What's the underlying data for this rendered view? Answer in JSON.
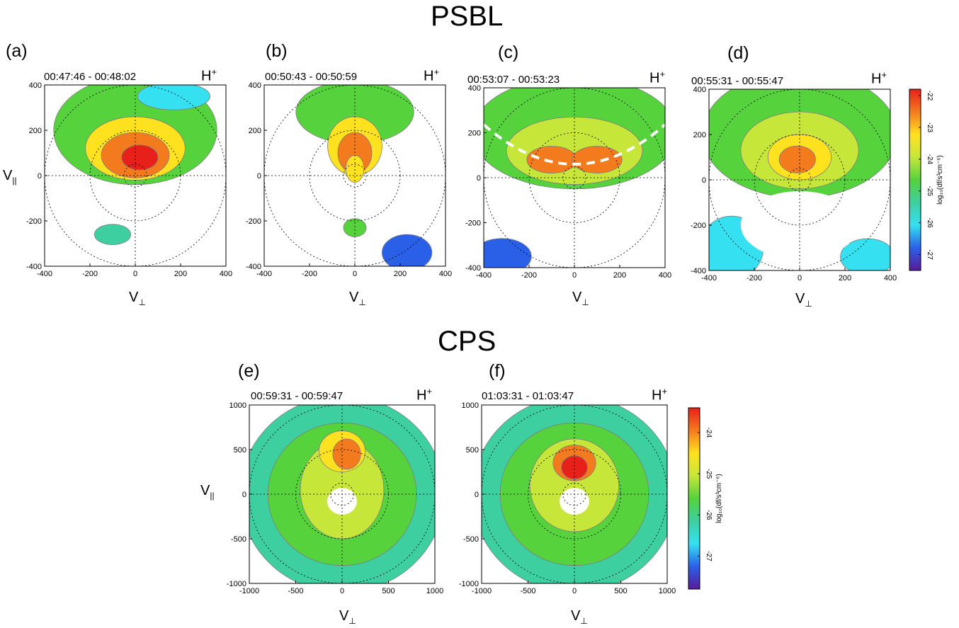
{
  "titles": {
    "psbl": "PSBL",
    "cps": "CPS"
  },
  "colors": {
    "red": "#e8201a",
    "orange": "#f47a1e",
    "yellow": "#ffe21f",
    "yellowgreen": "#c7e63a",
    "green": "#55d23c",
    "teal": "#3ecfa0",
    "cyan": "#35e0f0",
    "blue": "#2a60e8",
    "purple": "#5a1a9a"
  },
  "panels": [
    {
      "letter": "(a)",
      "time": "00:47:46 - 00:48:02",
      "species_base": "H",
      "species_sup": "+",
      "ylabel_base": "V",
      "ylabel_sub": "||",
      "xlabel_base": "V",
      "xlabel_sub": "⊥",
      "xticks": [
        "-400",
        "-200",
        "0",
        "200",
        "400"
      ],
      "yticks": [
        "400",
        "200",
        "0",
        "-200",
        "-400"
      ]
    },
    {
      "letter": "(b)",
      "time": "00:50:43 - 00:50:59",
      "species_base": "H",
      "species_sup": "+",
      "xlabel_base": "V",
      "xlabel_sub": "⊥",
      "xticks": [
        "-400",
        "-200",
        "0",
        "200",
        "400"
      ],
      "yticks": [
        "400",
        "200",
        "0",
        "-200",
        "-400"
      ]
    },
    {
      "letter": "(c)",
      "time": "00:53:07 - 00:53:23",
      "species_base": "H",
      "species_sup": "+",
      "xlabel_base": "V",
      "xlabel_sub": "⊥",
      "xticks": [
        "-400",
        "-200",
        "0",
        "200",
        "400"
      ],
      "yticks": [
        "400",
        "200",
        "0",
        "-200",
        "-400"
      ]
    },
    {
      "letter": "(d)",
      "time": "00:55:31 - 00:55:47",
      "species_base": "H",
      "species_sup": "+",
      "xlabel_base": "V",
      "xlabel_sub": "⊥",
      "xticks": [
        "-400",
        "-200",
        "0",
        "200",
        "400"
      ],
      "yticks": [
        "400",
        "200",
        "0",
        "-200",
        "-400"
      ]
    },
    {
      "letter": "(e)",
      "time": "00:59:31 - 00:59:47",
      "species_base": "H",
      "species_sup": "+",
      "ylabel_base": "V",
      "ylabel_sub": "||",
      "xlabel_base": "V",
      "xlabel_sub": "⊥",
      "xticks": [
        "-1000",
        "-500",
        "0",
        "500",
        "1000"
      ],
      "yticks": [
        "1000",
        "500",
        "0",
        "-500",
        "-1000"
      ]
    },
    {
      "letter": "(f)",
      "time": "01:03:31 - 01:03:47",
      "species_base": "H",
      "species_sup": "+",
      "xlabel_base": "V",
      "xlabel_sub": "⊥",
      "xticks": [
        "-1000",
        "-500",
        "0",
        "500",
        "1000"
      ],
      "yticks": [
        "1000",
        "500",
        "0",
        "-500",
        "-1000"
      ]
    }
  ],
  "colorbars": [
    {
      "label": "log₁₀(df/s³cm⁻⁶)",
      "ticks": [
        "-22",
        "-23",
        "-24",
        "-25",
        "-26",
        "-27"
      ],
      "range": [
        -27.5,
        -21.8
      ]
    },
    {
      "label": "log₁₀(df/s³cm⁻⁶)",
      "ticks": [
        "-24",
        "-25",
        "-26",
        "-27"
      ],
      "range": [
        -27.8,
        -23.4
      ]
    }
  ],
  "chart_data": [
    {
      "type": "heatmap",
      "panel": "(a)",
      "title": "00:47:46 - 00:48:02",
      "xlabel": "V⊥",
      "ylabel": "V||",
      "xlim": [
        -400,
        400
      ],
      "ylim": [
        -400,
        400
      ],
      "grid": "dotted crosshair and velocity circles",
      "blobs": [
        {
          "cx": 0,
          "cy": 200,
          "rx": 360,
          "ry": 240,
          "level": -24.5
        },
        {
          "cx": 0,
          "cy": 120,
          "rx": 220,
          "ry": 140,
          "level": -23.5
        },
        {
          "cx": 0,
          "cy": 90,
          "rx": 150,
          "ry": 100,
          "level": -22.6
        },
        {
          "cx": 20,
          "cy": 80,
          "rx": 80,
          "ry": 55,
          "level": -22.0
        },
        {
          "cx": -100,
          "cy": -260,
          "rx": 80,
          "ry": 45,
          "level": -25.5
        },
        {
          "cx": 170,
          "cy": 350,
          "rx": 160,
          "ry": 60,
          "level": -26.3
        }
      ]
    },
    {
      "type": "heatmap",
      "panel": "(b)",
      "title": "00:50:43 - 00:50:59",
      "xlabel": "V⊥",
      "xlim": [
        -400,
        400
      ],
      "ylim": [
        -400,
        400
      ],
      "grid": "dotted crosshair and velocity circles",
      "blobs": [
        {
          "cx": 0,
          "cy": 280,
          "rx": 260,
          "ry": 140,
          "level": -24.5
        },
        {
          "cx": 0,
          "cy": 130,
          "rx": 120,
          "ry": 130,
          "level": -23.5
        },
        {
          "cx": 0,
          "cy": 100,
          "rx": 75,
          "ry": 90,
          "level": -22.3
        },
        {
          "cx": 0,
          "cy": 30,
          "rx": 40,
          "ry": 60,
          "level": -22.9
        },
        {
          "cx": 0,
          "cy": -230,
          "rx": 50,
          "ry": 40,
          "level": -24.8
        },
        {
          "cx": 230,
          "cy": -340,
          "rx": 110,
          "ry": 80,
          "level": -26.6
        }
      ]
    },
    {
      "type": "heatmap",
      "panel": "(c)",
      "title": "00:53:07 - 00:53:23",
      "xlabel": "V⊥",
      "xlim": [
        -400,
        400
      ],
      "ylim": [
        -400,
        400
      ],
      "grid": "dotted crosshair and velocity circles",
      "annotation": "white dashed curve",
      "blobs": [
        {
          "cx": 0,
          "cy": 200,
          "rx": 450,
          "ry": 250,
          "level": -25.0
        },
        {
          "cx": 0,
          "cy": 120,
          "rx": 300,
          "ry": 150,
          "level": -24.0
        },
        {
          "cx": -100,
          "cy": 80,
          "rx": 110,
          "ry": 60,
          "level": -22.3
        },
        {
          "cx": 100,
          "cy": 80,
          "rx": 110,
          "ry": 60,
          "level": -22.3
        },
        {
          "cx": -320,
          "cy": -350,
          "rx": 130,
          "ry": 80,
          "level": -26.6
        }
      ]
    },
    {
      "type": "heatmap",
      "panel": "(d)",
      "title": "00:55:31 - 00:55:47",
      "xlabel": "V⊥",
      "xlim": [
        -400,
        400
      ],
      "ylim": [
        -400,
        400
      ],
      "grid": "dotted crosshair and velocity circles",
      "blobs": [
        {
          "cx": 0,
          "cy": 200,
          "rx": 430,
          "ry": 280,
          "level": -25.0
        },
        {
          "cx": 0,
          "cy": 130,
          "rx": 260,
          "ry": 170,
          "level": -24.0
        },
        {
          "cx": 0,
          "cy": 100,
          "rx": 140,
          "ry": 100,
          "level": -23.0
        },
        {
          "cx": -10,
          "cy": 90,
          "rx": 80,
          "ry": 60,
          "level": -22.2
        },
        {
          "cx": -300,
          "cy": -300,
          "rx": 140,
          "ry": 140,
          "level": -25.8
        },
        {
          "cx": 300,
          "cy": -340,
          "rx": 120,
          "ry": 80,
          "level": -26.4
        }
      ]
    },
    {
      "type": "heatmap",
      "panel": "(e)",
      "title": "00:59:31 - 00:59:47",
      "xlabel": "V⊥",
      "ylabel": "V||",
      "xlim": [
        -1000,
        1000
      ],
      "ylim": [
        -1000,
        1000
      ],
      "grid": "dotted crosshair and velocity circles",
      "blobs": [
        {
          "cx": 0,
          "cy": 0,
          "rx": 1100,
          "ry": 1100,
          "level": -26.0
        },
        {
          "cx": 0,
          "cy": 0,
          "rx": 800,
          "ry": 800,
          "level": -25.4
        },
        {
          "cx": 0,
          "cy": 50,
          "rx": 450,
          "ry": 550,
          "level": -24.9
        },
        {
          "cx": 0,
          "cy": 480,
          "rx": 250,
          "ry": 230,
          "level": -24.3
        },
        {
          "cx": 50,
          "cy": 450,
          "rx": 150,
          "ry": 170,
          "level": -23.7
        }
      ]
    },
    {
      "type": "heatmap",
      "panel": "(f)",
      "title": "01:03:31 - 01:03:47",
      "xlabel": "V⊥",
      "xlim": [
        -1000,
        1000
      ],
      "ylim": [
        -1000,
        1000
      ],
      "grid": "dotted crosshair and velocity circles",
      "blobs": [
        {
          "cx": 0,
          "cy": 0,
          "rx": 1100,
          "ry": 1100,
          "level": -26.0
        },
        {
          "cx": 0,
          "cy": 0,
          "rx": 800,
          "ry": 800,
          "level": -25.4
        },
        {
          "cx": 0,
          "cy": 100,
          "rx": 480,
          "ry": 520,
          "level": -24.9
        },
        {
          "cx": 0,
          "cy": 350,
          "rx": 230,
          "ry": 200,
          "level": -24.0
        },
        {
          "cx": 0,
          "cy": 300,
          "rx": 140,
          "ry": 130,
          "level": -23.6
        }
      ]
    }
  ]
}
